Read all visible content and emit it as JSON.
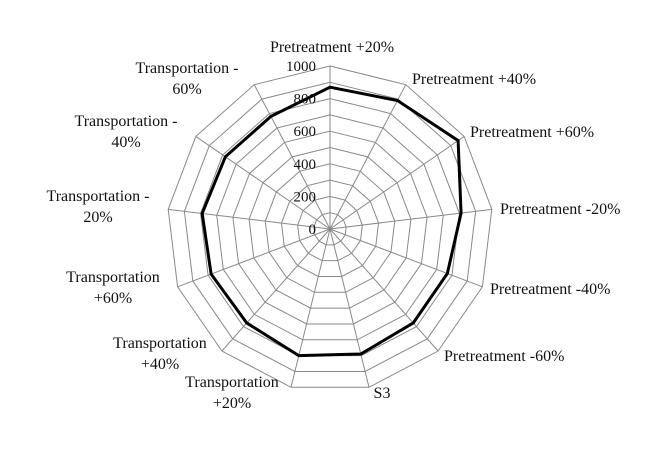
{
  "chart_data": {
    "type": "radar",
    "categories": [
      "Pretreatment +20%",
      "Pretreatment +40%",
      "Pretreatment +60%",
      "Pretreatment -20%",
      "Pretreatment -40%",
      "Pretreatment -60%",
      "S3",
      "Transportation +20%",
      "Transportation +40%",
      "Transportation +60%",
      "Transportation - 20%",
      "Transportation - 40%",
      "Transportation - 60%"
    ],
    "series": [
      {
        "values": [
          870,
          890,
          955,
          810,
          770,
          770,
          790,
          800,
          770,
          780,
          790,
          780,
          780
        ]
      }
    ],
    "rlim": [
      0,
      1000
    ],
    "ticks": [
      0,
      200,
      400,
      600,
      800,
      1000
    ],
    "tick_labels": [
      "0",
      "200",
      "400",
      "600",
      "800",
      "1000"
    ],
    "grid": true,
    "colors": {
      "series": "#000000",
      "grid": "#8a8a8a"
    }
  }
}
